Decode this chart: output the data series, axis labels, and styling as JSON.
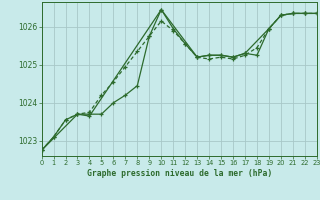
{
  "title": "Graphe pression niveau de la mer (hPa)",
  "bg_color": "#c8eaea",
  "grid_color": "#a8c8c8",
  "line_color": "#2d6b2d",
  "xlim": [
    0,
    23
  ],
  "ylim": [
    1022.6,
    1026.65
  ],
  "yticks": [
    1023,
    1024,
    1025,
    1026
  ],
  "xticks": [
    0,
    1,
    2,
    3,
    4,
    5,
    6,
    7,
    8,
    9,
    10,
    11,
    12,
    13,
    14,
    15,
    16,
    17,
    18,
    19,
    20,
    21,
    22,
    23
  ],
  "series1_x": [
    0,
    1,
    2,
    3,
    4,
    5,
    6,
    7,
    8,
    9,
    10,
    11,
    12,
    13,
    14,
    15,
    16,
    17,
    18,
    19,
    20,
    21,
    22,
    23
  ],
  "series1_y": [
    1022.75,
    1023.1,
    1023.55,
    1023.7,
    1023.75,
    1024.2,
    1024.55,
    1024.95,
    1025.35,
    1025.75,
    1026.15,
    1025.9,
    1025.55,
    1025.2,
    1025.15,
    1025.2,
    1025.15,
    1025.25,
    1025.45,
    1025.95,
    1026.3,
    1026.35,
    1026.35,
    1026.35
  ],
  "series2_x": [
    0,
    1,
    2,
    3,
    4,
    5,
    6,
    7,
    8,
    9,
    10,
    11,
    12,
    13,
    14,
    15,
    16,
    17,
    18,
    19,
    20,
    21,
    22,
    23
  ],
  "series2_y": [
    1022.75,
    1023.1,
    1023.55,
    1023.7,
    1023.7,
    1023.7,
    1024.0,
    1024.2,
    1024.45,
    1025.75,
    1026.45,
    1025.95,
    1025.55,
    1025.2,
    1025.25,
    1025.25,
    1025.2,
    1025.3,
    1025.25,
    1025.95,
    1026.3,
    1026.35,
    1026.35,
    1026.35
  ],
  "series3_x": [
    0,
    3,
    4,
    10,
    13,
    14,
    15,
    16,
    17,
    19,
    20,
    21,
    22,
    23
  ],
  "series3_y": [
    1022.75,
    1023.7,
    1023.65,
    1026.45,
    1025.2,
    1025.25,
    1025.25,
    1025.2,
    1025.3,
    1025.95,
    1026.3,
    1026.35,
    1026.35,
    1026.35
  ]
}
